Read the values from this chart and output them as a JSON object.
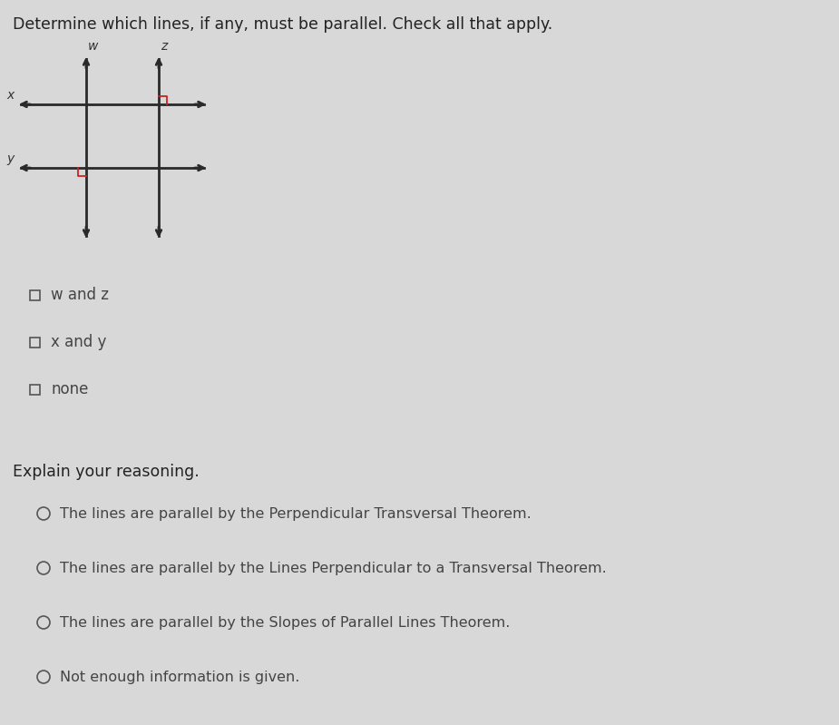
{
  "background_color": "#d8d8d8",
  "title": "Determine which lines, if any, must be parallel. Check all that apply.",
  "title_fontsize": 12.5,
  "title_color": "#222222",
  "checkboxes": [
    {
      "label": "w and z"
    },
    {
      "label": "x and y"
    },
    {
      "label": "none"
    }
  ],
  "explain_label": "Explain your reasoning.",
  "explain_fontsize": 12.5,
  "radio_options": [
    {
      "label": "The lines are parallel by the Perpendicular Transversal Theorem."
    },
    {
      "label": "The lines are parallel by the Lines Perpendicular to a Transversal Theorem."
    },
    {
      "label": "The lines are parallel by the Slopes of Parallel Lines Theorem."
    },
    {
      "label": "Not enough information is given."
    }
  ],
  "radio_fontsize": 11.5,
  "checkbox_fontsize": 12,
  "line_color": "#2a2a2a",
  "ra_color": "#cc2222",
  "label_color": "#333333",
  "circle_color": "#555555",
  "text_color": "#444444"
}
